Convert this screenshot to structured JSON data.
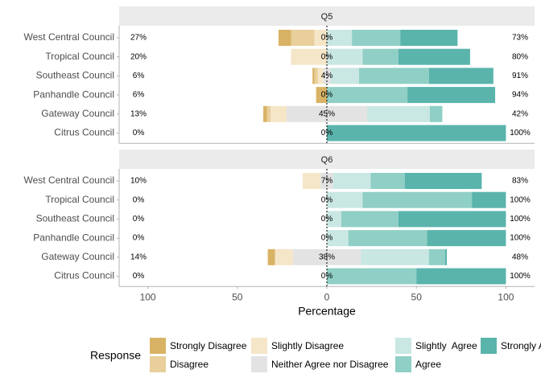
{
  "chart_data": {
    "type": "diverging-bar",
    "x_label": "Percentage",
    "legend_title": "Response",
    "panels": [
      "Q5",
      "Q6"
    ],
    "categories": [
      "West Central Council",
      "Tropical Council",
      "Southeast Council",
      "Panhandle Council",
      "Gateway Council",
      "Citrus Council"
    ],
    "series": [
      {
        "name": "Strongly Disagree",
        "color": "#d8b365",
        "values": [
          [
            7,
            0,
            1,
            6,
            2,
            0
          ],
          [
            0,
            0,
            0,
            0,
            4,
            0
          ]
        ]
      },
      {
        "name": "Disagree",
        "color": "#e8cf9c",
        "values": [
          [
            13,
            0,
            2,
            0,
            2,
            0
          ],
          [
            0,
            0,
            0,
            0,
            0,
            0
          ]
        ]
      },
      {
        "name": "Slightly Disagree",
        "color": "#f5e6c8",
        "values": [
          [
            7,
            20,
            3,
            0,
            9,
            0
          ],
          [
            10,
            0,
            0,
            0,
            10,
            0
          ]
        ]
      },
      {
        "name": "Neither Agree nor Disagree",
        "color": "#e3e3e3",
        "values": [
          [
            0,
            0,
            4,
            0,
            45,
            0
          ],
          [
            7,
            0,
            0,
            0,
            38,
            0
          ]
        ]
      },
      {
        "name": "Slightly  Agree",
        "color": "#c9e7e3",
        "values": [
          [
            14,
            20,
            16,
            0,
            35,
            0
          ],
          [
            21,
            20,
            8,
            12,
            38,
            0
          ]
        ]
      },
      {
        "name": "Agree",
        "color": "#90cfc5",
        "values": [
          [
            27,
            20,
            39,
            45,
            7,
            0
          ],
          [
            19,
            61,
            32,
            44,
            9,
            50
          ]
        ]
      },
      {
        "name": "Strongly Agree",
        "color": "#5ab4ac",
        "values": [
          [
            32,
            40,
            36,
            49,
            0,
            100
          ],
          [
            43,
            19,
            60,
            44,
            1,
            50
          ]
        ]
      }
    ],
    "left_labels": [
      [
        "27%",
        "20%",
        "6%",
        "6%",
        "13%",
        "0%"
      ],
      [
        "10%",
        "0%",
        "0%",
        "0%",
        "14%",
        "0%"
      ]
    ],
    "center_labels": [
      [
        "0%",
        "0%",
        "4%",
        "0%",
        "45%",
        "0%"
      ],
      [
        "7%",
        "0%",
        "0%",
        "0%",
        "38%",
        "0%"
      ]
    ],
    "right_labels": [
      [
        "73%",
        "80%",
        "91%",
        "94%",
        "42%",
        "100%"
      ],
      [
        "83%",
        "100%",
        "100%",
        "100%",
        "48%",
        "100%"
      ]
    ],
    "xlim": [
      -116,
      116
    ],
    "xticks": [
      {
        "value": -100,
        "label": "100"
      },
      {
        "value": -50,
        "label": "50"
      },
      0,
      50,
      {
        "value": 100,
        "label": "100"
      }
    ]
  }
}
